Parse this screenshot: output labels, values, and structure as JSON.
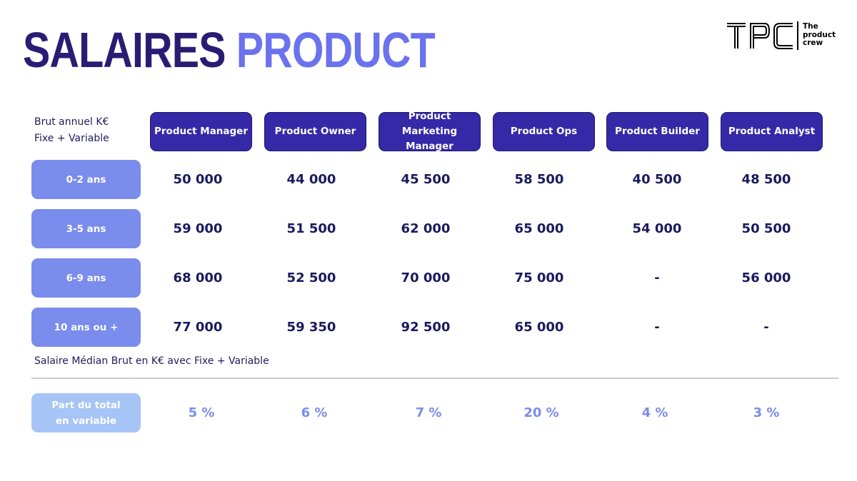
{
  "title": {
    "part1": "SALAIRES",
    "part2": "PRODUCT"
  },
  "logo": {
    "mark": "TPC",
    "line1": "The",
    "line2": "product",
    "line3": "crew"
  },
  "table": {
    "corner_line1": "Brut annuel K€",
    "corner_line2": "Fixe + Variable",
    "columns": [
      {
        "line1": "Product Manager",
        "line2": ""
      },
      {
        "line1": "Product Owner",
        "line2": ""
      },
      {
        "line1": "Product Marketing",
        "line2": "Manager"
      },
      {
        "line1": "Product Ops",
        "line2": ""
      },
      {
        "line1": "Product Builder",
        "line2": ""
      },
      {
        "line1": "Product Analyst",
        "line2": ""
      }
    ],
    "rows": [
      {
        "label": "0-2 ans",
        "values": [
          "50 000",
          "44 000",
          "45 500",
          "58 500",
          "40 500",
          "48 500"
        ]
      },
      {
        "label": "3-5 ans",
        "values": [
          "59 000",
          "51 500",
          "62 000",
          "65 000",
          "54 000",
          "50 500"
        ]
      },
      {
        "label": "6-9 ans",
        "values": [
          "68 000",
          "52 500",
          "70 000",
          "75 000",
          "-",
          "56 000"
        ]
      },
      {
        "label": "10 ans ou +",
        "values": [
          "77 000",
          "59 350",
          "92 500",
          "65 000",
          "-",
          "-"
        ]
      }
    ],
    "footnote": "Salaire Médian Brut en K€ avec Fixe + Variable",
    "variable": {
      "label_line1": "Part du total",
      "label_line2": "en variable",
      "values": [
        "5 %",
        "6 %",
        "7 %",
        "20 %",
        "4 %",
        "3 %"
      ]
    }
  },
  "colors": {
    "title_dark": "#2a1c73",
    "title_accent": "#6b72ee",
    "header_bg": "#3629a8",
    "row_label_bg": "#7a8cec",
    "variable_label_bg": "#a6c4f5",
    "value_text": "#1a1a5e",
    "percent_text": "#7a8cec"
  }
}
